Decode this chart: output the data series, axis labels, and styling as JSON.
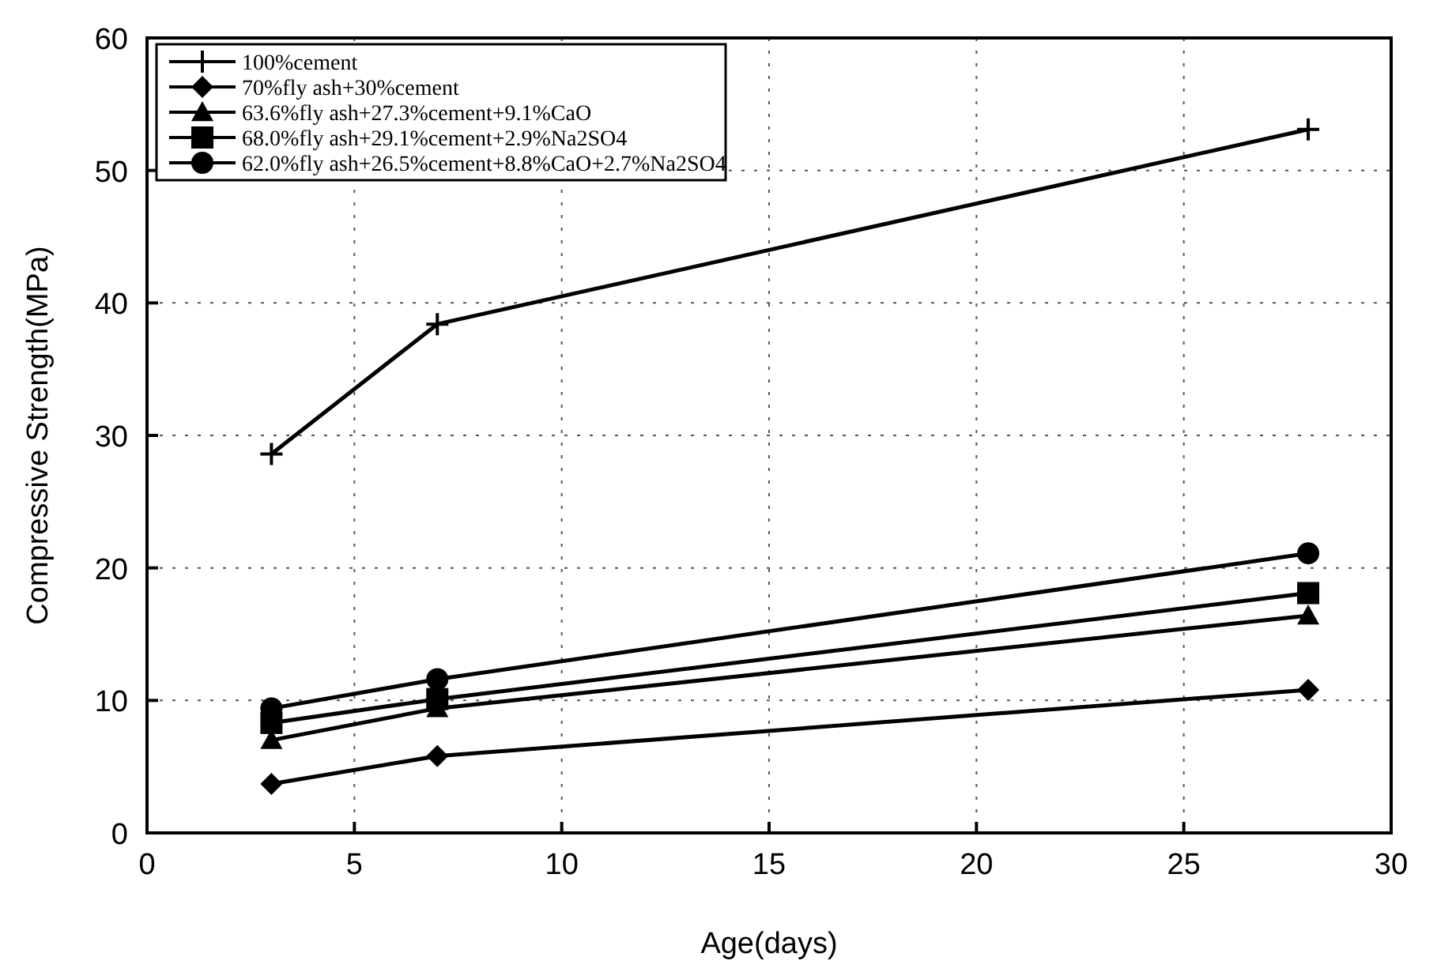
{
  "chart_data": {
    "type": "line",
    "xlabel": "Age(days)",
    "ylabel": "Compressive Strength(MPa)",
    "x": [
      3,
      7,
      28
    ],
    "xlim": [
      0,
      30
    ],
    "xticks": [
      0,
      5,
      10,
      15,
      20,
      25,
      30
    ],
    "ylim": [
      0,
      60
    ],
    "yticks": [
      0,
      10,
      20,
      30,
      40,
      50,
      60
    ],
    "grid": true,
    "legend": "top left",
    "line_style": "solid",
    "series": [
      {
        "name": "100%cement",
        "color": "#000000",
        "marker": "cross",
        "values": [
          28.6,
          38.4,
          53.1
        ]
      },
      {
        "name": "70%fly ash+30%cement",
        "color": "#000000",
        "marker": "diamond",
        "values": [
          3.7,
          5.8,
          10.8
        ]
      },
      {
        "name": "63.6%fly ash+27.3%cement+9.1%CaO",
        "color": "#000000",
        "marker": "triangle",
        "values": [
          7.0,
          9.4,
          16.4
        ]
      },
      {
        "name": "68.0%fly ash+29.1%cement+2.9%Na2SO4",
        "color": "#000000",
        "marker": "square",
        "values": [
          8.3,
          10.1,
          18.1
        ]
      },
      {
        "name": "62.0%fly ash+26.5%cement+8.8%CaO+2.7%Na2SO4",
        "color": "#000000",
        "marker": "circle",
        "values": [
          9.4,
          11.6,
          21.1
        ]
      }
    ]
  }
}
